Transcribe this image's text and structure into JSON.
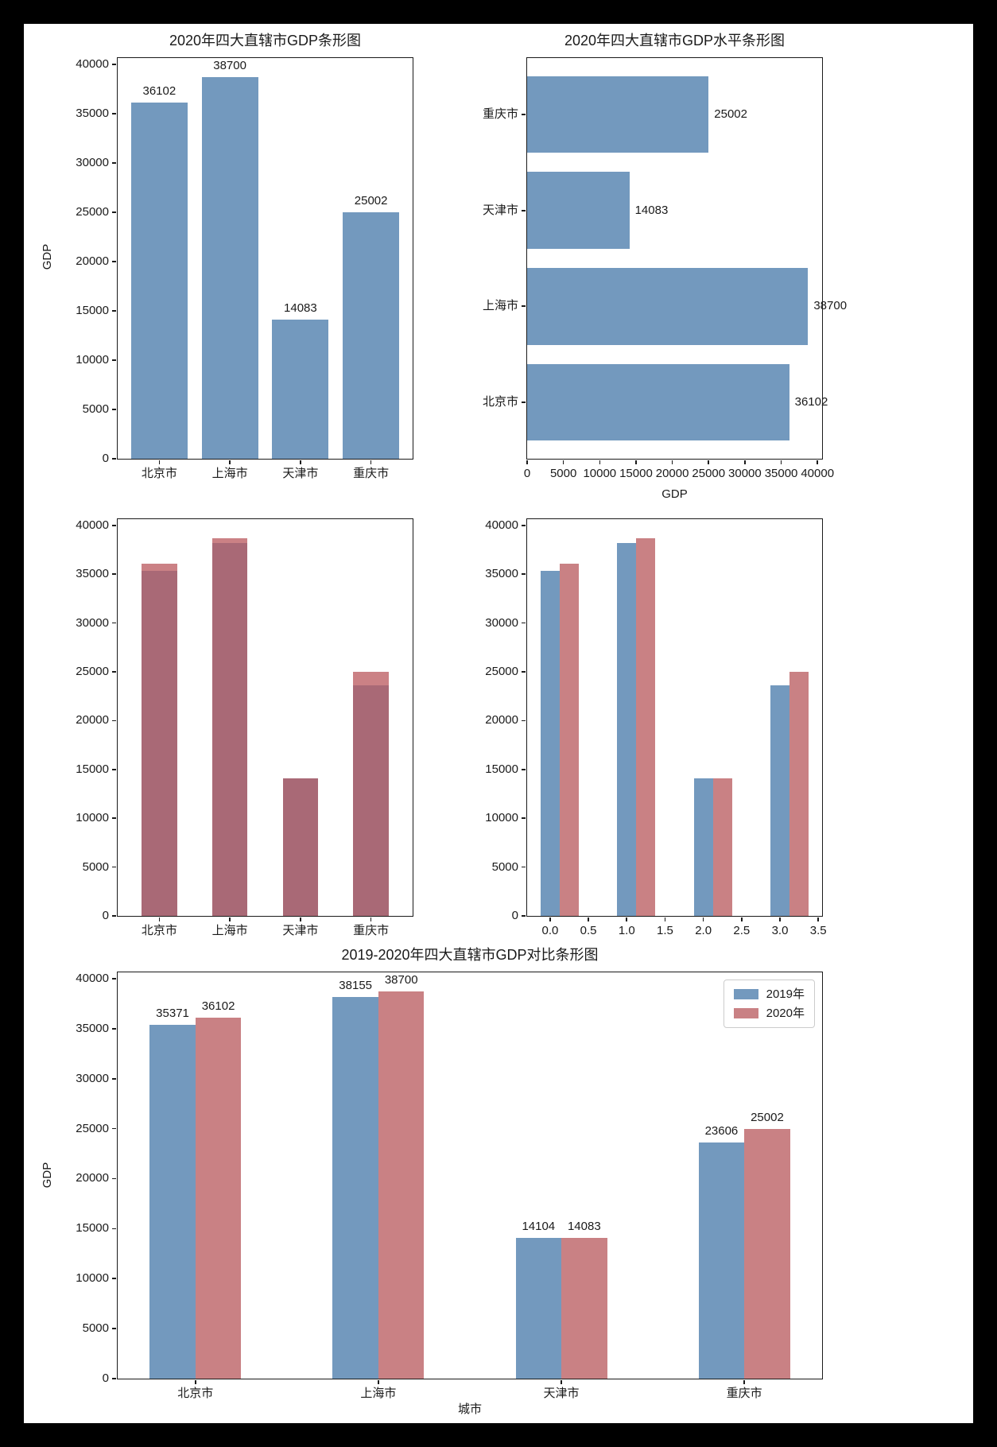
{
  "figure": {
    "background": "#000000",
    "paper": "#ffffff"
  },
  "colors": {
    "bar_blue": "#7399be",
    "bar_red": "#c98184",
    "red_overlay": "rgba(186,90,95,0.76)",
    "axis": "#1a1a1a",
    "legend_border": "#cccccc"
  },
  "legend": {
    "items": [
      {
        "label": "2019年",
        "color": "#7399be"
      },
      {
        "label": "2020年",
        "color": "#c98184"
      }
    ]
  },
  "chart_data": [
    {
      "id": "tl",
      "type": "bar",
      "title": "2020年四大直辖市GDP条形图",
      "xlabel": "",
      "ylabel": "GDP",
      "categories": [
        "北京市",
        "上海市",
        "天津市",
        "重庆市"
      ],
      "values": [
        36102,
        38700,
        14083,
        25002
      ],
      "bar_labels": [
        "36102",
        "38700",
        "14083",
        "25002"
      ],
      "yticks": [
        0,
        5000,
        10000,
        15000,
        20000,
        25000,
        30000,
        35000,
        40000
      ],
      "ylim": [
        0,
        40635
      ],
      "grid": false,
      "bar_color": "#7399be"
    },
    {
      "id": "tr",
      "type": "barh",
      "title": "2020年四大直辖市GDP水平条形图",
      "xlabel": "GDP",
      "categories_bottom_to_top": [
        "北京市",
        "上海市",
        "天津市",
        "重庆市"
      ],
      "values_bottom_to_top": [
        36102,
        38700,
        14083,
        25002
      ],
      "bar_labels": [
        "36102",
        "38700",
        "14083",
        "25002"
      ],
      "xticks": [
        0,
        5000,
        10000,
        15000,
        20000,
        25000,
        30000,
        35000,
        40000
      ],
      "xlim": [
        0,
        40635
      ],
      "grid": false,
      "bar_color": "#7399be"
    },
    {
      "id": "ml",
      "type": "bar-overlapped",
      "title": "",
      "categories": [
        "北京市",
        "上海市",
        "天津市",
        "重庆市"
      ],
      "series": [
        {
          "name": "2019年",
          "values": [
            35371,
            38155,
            14104,
            23606
          ],
          "color": "#7399be"
        },
        {
          "name": "2020年",
          "values": [
            36102,
            38700,
            14083,
            25002
          ],
          "color": "rgba(186,90,95,0.76)"
        }
      ],
      "yticks": [
        0,
        5000,
        10000,
        15000,
        20000,
        25000,
        30000,
        35000,
        40000
      ],
      "ylim": [
        0,
        40635
      ],
      "grid": false
    },
    {
      "id": "mr",
      "type": "bar-grouped",
      "title": "",
      "x_positions": [
        0,
        1,
        2,
        3
      ],
      "series_offsets": [
        0,
        0.25
      ],
      "bar_width": 0.25,
      "series": [
        {
          "name": "2019年",
          "values": [
            35371,
            38155,
            14104,
            23606
          ],
          "color": "#7399be"
        },
        {
          "name": "2020年",
          "values": [
            36102,
            38700,
            14083,
            25002
          ],
          "color": "#c98184"
        }
      ],
      "xticks": [
        0,
        0.5,
        1,
        1.5,
        2,
        2.5,
        3,
        3.5
      ],
      "xtick_labels": [
        "0.0",
        "0.5",
        "1.0",
        "1.5",
        "2.0",
        "2.5",
        "3.0",
        "3.5"
      ],
      "xlim": [
        -0.3,
        3.55
      ],
      "yticks": [
        0,
        5000,
        10000,
        15000,
        20000,
        25000,
        30000,
        35000,
        40000
      ],
      "ylim": [
        0,
        40635
      ],
      "grid": false
    },
    {
      "id": "bt",
      "type": "bar-grouped",
      "title": "2019-2020年四大直辖市GDP对比条形图",
      "xlabel": "城市",
      "ylabel": "GDP",
      "categories": [
        "北京市",
        "上海市",
        "天津市",
        "重庆市"
      ],
      "x_positions": [
        0,
        1,
        2,
        3
      ],
      "series_offsets": [
        0,
        0.25
      ],
      "bar_width": 0.25,
      "series": [
        {
          "name": "2019年",
          "values": [
            35371,
            38155,
            14104,
            23606
          ],
          "color": "#7399be",
          "bar_labels": [
            "35371",
            "38155",
            "14104",
            "23606"
          ]
        },
        {
          "name": "2020年",
          "values": [
            36102,
            38700,
            14083,
            25002
          ],
          "color": "#c98184",
          "bar_labels": [
            "36102",
            "38700",
            "14083",
            "25002"
          ]
        }
      ],
      "xtick_positions": [
        0.125,
        1.125,
        2.125,
        3.125
      ],
      "xlim": [
        -0.3,
        3.55
      ],
      "yticks": [
        0,
        5000,
        10000,
        15000,
        20000,
        25000,
        30000,
        35000,
        40000
      ],
      "ylim": [
        0,
        40635
      ],
      "legend": [
        "2019年",
        "2020年"
      ],
      "legend_position": "upper right",
      "grid": false
    }
  ]
}
